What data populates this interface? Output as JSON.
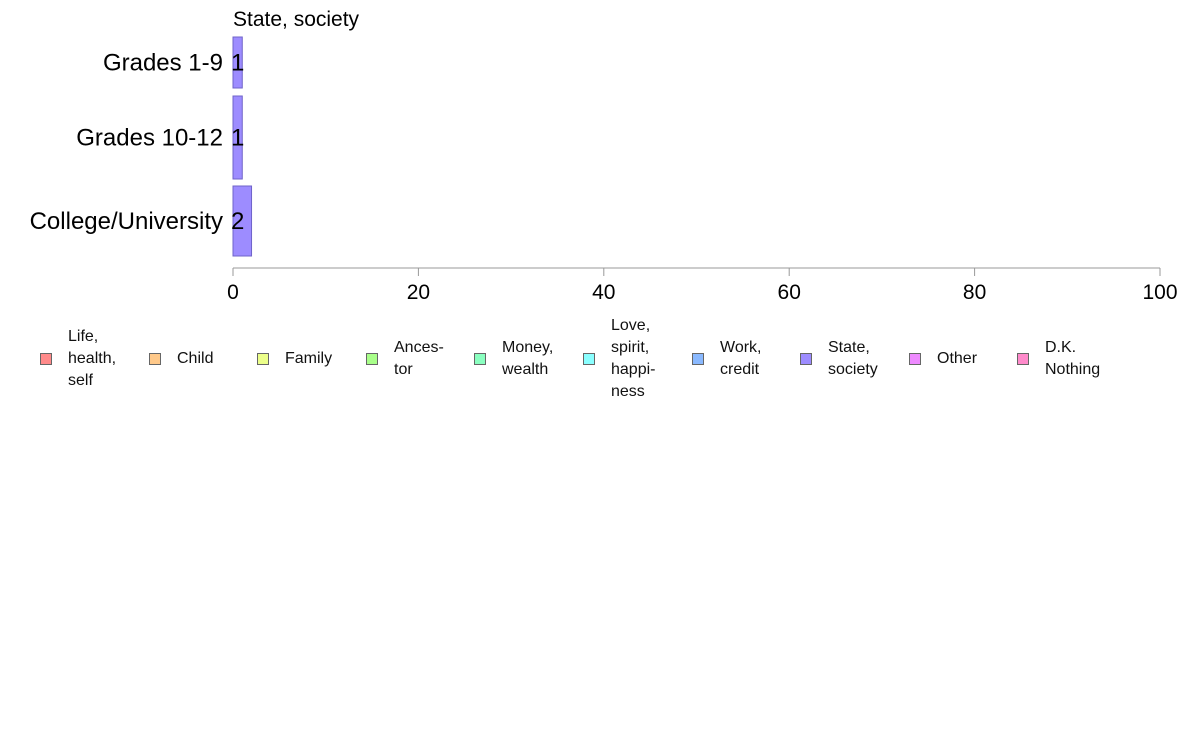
{
  "chart_data": {
    "type": "bar",
    "orientation": "horizontal",
    "stacked": true,
    "title": "State, society",
    "categories": [
      "Grades 1-9",
      "Grades 10-12",
      "College/University"
    ],
    "series": [
      {
        "name": "State,\nsociety",
        "color": "#9d8cff",
        "values": [
          1,
          1,
          2
        ],
        "labels": [
          "1",
          "1",
          "2"
        ]
      }
    ],
    "xlim": [
      0,
      100
    ],
    "xticks": [
      0,
      20,
      40,
      60,
      80,
      100
    ],
    "grid": false,
    "legend_position": "bottom"
  },
  "legend": {
    "items": [
      {
        "label": "Life,\nhealth,\nself",
        "color": "#ff8a8a"
      },
      {
        "label": "Child",
        "color": "#ffc98a"
      },
      {
        "label": "Family",
        "color": "#ecff8a"
      },
      {
        "label": "Ances-\ntor",
        "color": "#a9ff8a"
      },
      {
        "label": "Money,\nwealth",
        "color": "#8affc0"
      },
      {
        "label": "Love,\nspirit,\nhappi-\nness",
        "color": "#8affff"
      },
      {
        "label": "Work,\ncredit",
        "color": "#8ab9ff"
      },
      {
        "label": "State,\nsociety",
        "color": "#9d8cff"
      },
      {
        "label": "Other",
        "color": "#ee8aff"
      },
      {
        "label": "D.K.\nNothing",
        "color": "#ff8acb"
      }
    ]
  }
}
